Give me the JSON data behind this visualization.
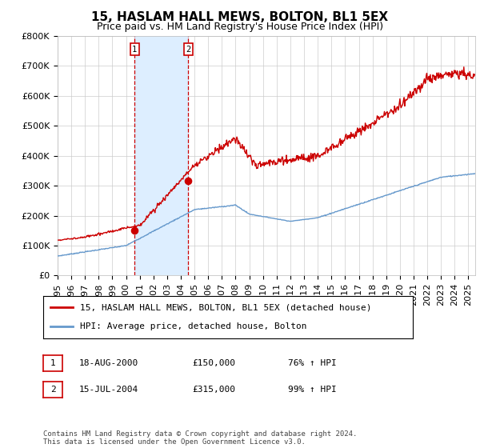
{
  "title": "15, HASLAM HALL MEWS, BOLTON, BL1 5EX",
  "subtitle": "Price paid vs. HM Land Registry's House Price Index (HPI)",
  "ylim": [
    0,
    800000
  ],
  "yticks": [
    0,
    100000,
    200000,
    300000,
    400000,
    500000,
    600000,
    700000,
    800000
  ],
  "ytick_labels": [
    "£0",
    "£100K",
    "£200K",
    "£300K",
    "£400K",
    "£500K",
    "£600K",
    "£700K",
    "£800K"
  ],
  "xlim_start": 1995.0,
  "xlim_end": 2025.5,
  "sale1_date": 2000.628,
  "sale1_price": 150000,
  "sale1_label": "1",
  "sale1_text": "18-AUG-2000",
  "sale1_amount": "£150,000",
  "sale1_hpi": "76% ↑ HPI",
  "sale2_date": 2004.538,
  "sale2_price": 315000,
  "sale2_label": "2",
  "sale2_text": "15-JUL-2004",
  "sale2_amount": "£315,000",
  "sale2_hpi": "99% ↑ HPI",
  "red_color": "#cc0000",
  "blue_color": "#6699cc",
  "shade_color": "#ddeeff",
  "grid_color": "#cccccc",
  "background_color": "#ffffff",
  "legend_label_red": "15, HASLAM HALL MEWS, BOLTON, BL1 5EX (detached house)",
  "legend_label_blue": "HPI: Average price, detached house, Bolton",
  "footnote": "Contains HM Land Registry data © Crown copyright and database right 2024.\nThis data is licensed under the Open Government Licence v3.0.",
  "title_fontsize": 11,
  "subtitle_fontsize": 9,
  "axis_fontsize": 8,
  "legend_fontsize": 8
}
